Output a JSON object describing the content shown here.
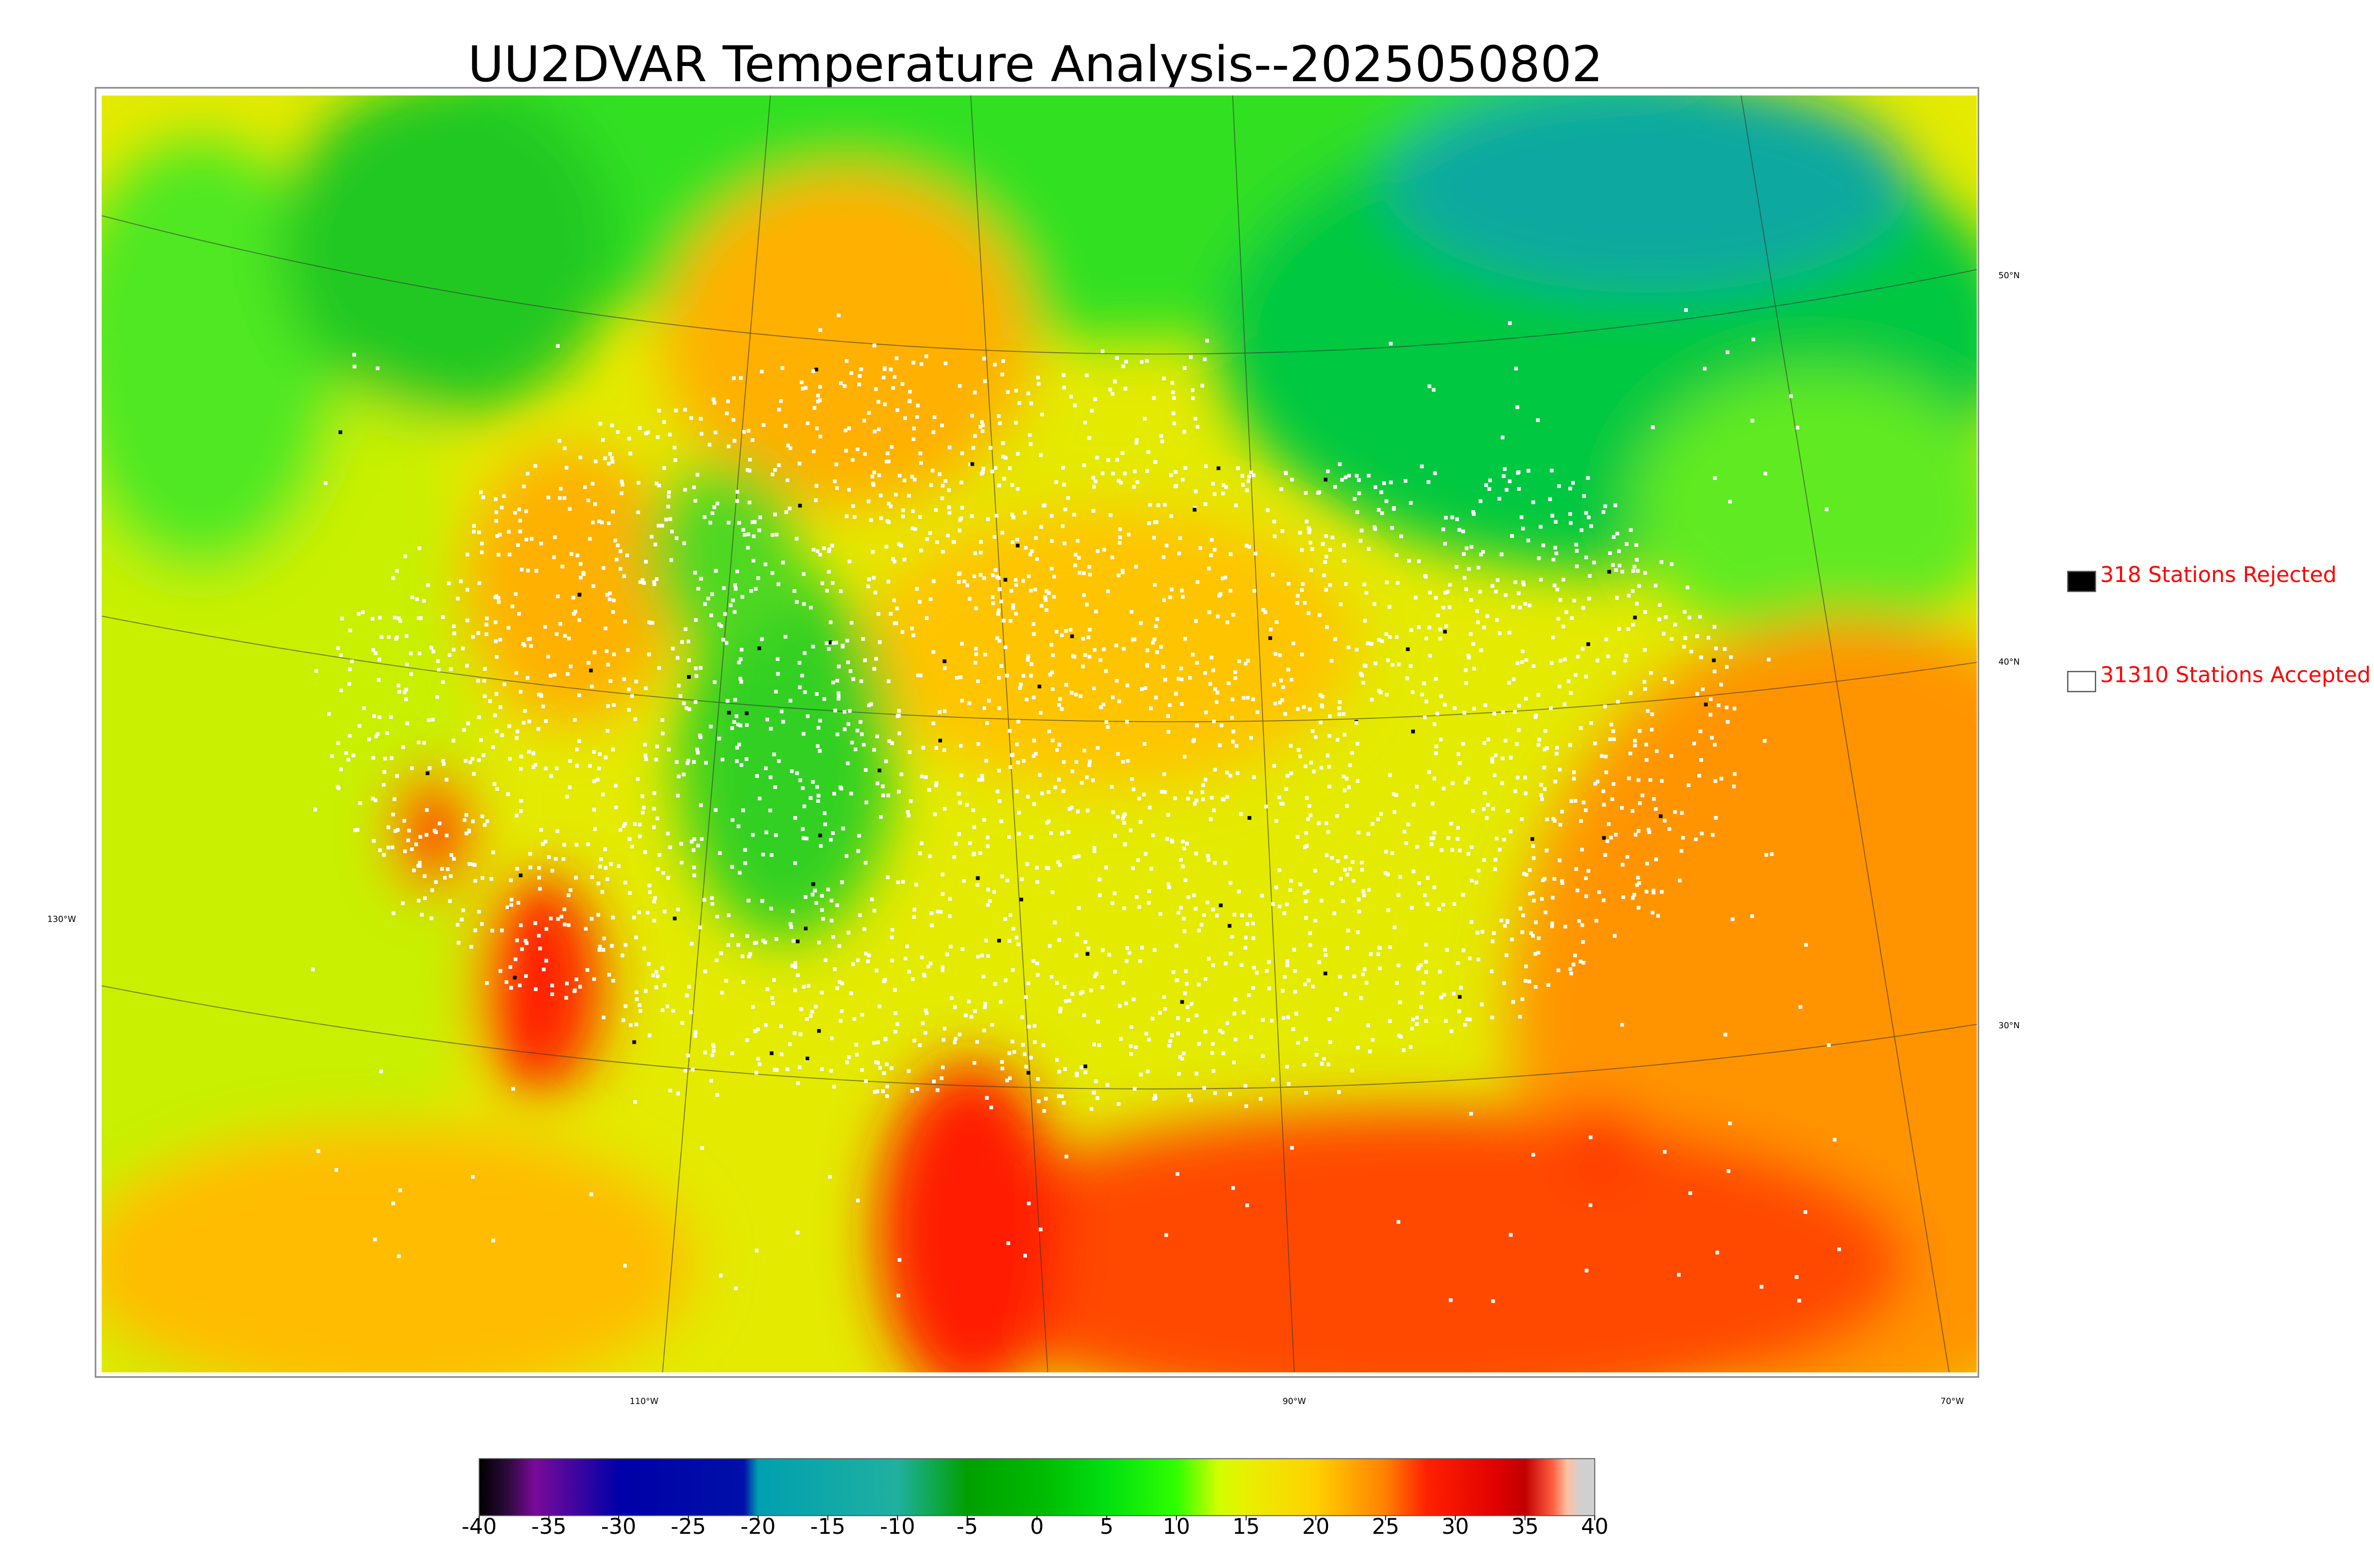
{
  "title": "UU2DVAR Temperature Analysis--2025050802",
  "map": {
    "latitude_labels": [
      "50°N",
      "40°N",
      "30°N"
    ],
    "longitude_labels": [
      "130°W",
      "110°W",
      "90°W",
      "70°W"
    ]
  },
  "legend": [
    {
      "label": "318 Stations Rejected",
      "color": "#000000"
    },
    {
      "label": "31310 Stations Accepted",
      "color": "#ffffff"
    }
  ],
  "colorbar": {
    "range": [
      -40,
      40
    ],
    "ticks": [
      -40,
      -35,
      -30,
      -25,
      -20,
      -15,
      -10,
      -5,
      0,
      5,
      10,
      15,
      20,
      25,
      30,
      35,
      40
    ],
    "stops": [
      {
        "value": -40,
        "color": "#000000"
      },
      {
        "value": -38,
        "color": "#2a0a3a"
      },
      {
        "value": -36,
        "color": "#7a0a9a"
      },
      {
        "value": -30,
        "color": "#0000a8"
      },
      {
        "value": -21,
        "color": "#0010a8"
      },
      {
        "value": -20,
        "color": "#00a0b0"
      },
      {
        "value": -10,
        "color": "#20b0a0"
      },
      {
        "value": -5,
        "color": "#00a000"
      },
      {
        "value": 0,
        "color": "#00b800"
      },
      {
        "value": 5,
        "color": "#00e010"
      },
      {
        "value": 10,
        "color": "#30ff00"
      },
      {
        "value": 13,
        "color": "#d0ff00"
      },
      {
        "value": 15,
        "color": "#e8f000"
      },
      {
        "value": 20,
        "color": "#ffd000"
      },
      {
        "value": 25,
        "color": "#ff8000"
      },
      {
        "value": 28,
        "color": "#ff2000"
      },
      {
        "value": 33,
        "color": "#e00000"
      },
      {
        "value": 35,
        "color": "#c00000"
      },
      {
        "value": 37,
        "color": "#ff6040"
      },
      {
        "value": 38,
        "color": "#ffc0a0"
      },
      {
        "value": 39,
        "color": "#d0d0d0"
      },
      {
        "value": 40,
        "color": "#d0d0d0"
      }
    ]
  }
}
